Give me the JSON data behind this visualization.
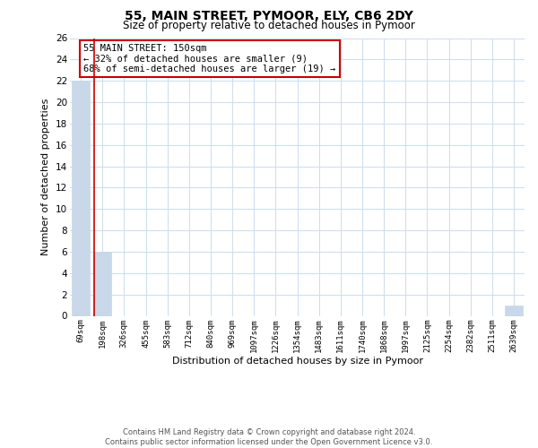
{
  "title": "55, MAIN STREET, PYMOOR, ELY, CB6 2DY",
  "subtitle": "Size of property relative to detached houses in Pymoor",
  "xlabel": "Distribution of detached houses by size in Pymoor",
  "ylabel": "Number of detached properties",
  "bin_labels": [
    "69sqm",
    "198sqm",
    "326sqm",
    "455sqm",
    "583sqm",
    "712sqm",
    "840sqm",
    "969sqm",
    "1097sqm",
    "1226sqm",
    "1354sqm",
    "1483sqm",
    "1611sqm",
    "1740sqm",
    "1868sqm",
    "1997sqm",
    "2125sqm",
    "2254sqm",
    "2382sqm",
    "2511sqm",
    "2639sqm"
  ],
  "bar_values": [
    22,
    6,
    0,
    0,
    0,
    0,
    0,
    0,
    0,
    0,
    0,
    0,
    0,
    0,
    0,
    0,
    0,
    0,
    0,
    0,
    1
  ],
  "bar_color": "#c8d8e8",
  "vline_color": "#cc0000",
  "vline_position": 0.6,
  "annotation_text_line1": "55 MAIN STREET: 150sqm",
  "annotation_text_line2": "← 32% of detached houses are smaller (9)",
  "annotation_text_line3": "68% of semi-detached houses are larger (19) →",
  "ylim": [
    0,
    26
  ],
  "yticks": [
    0,
    2,
    4,
    6,
    8,
    10,
    12,
    14,
    16,
    18,
    20,
    22,
    24,
    26
  ],
  "background_color": "#ffffff",
  "grid_color": "#ccdded",
  "footer_line1": "Contains HM Land Registry data © Crown copyright and database right 2024.",
  "footer_line2": "Contains public sector information licensed under the Open Government Licence v3.0."
}
